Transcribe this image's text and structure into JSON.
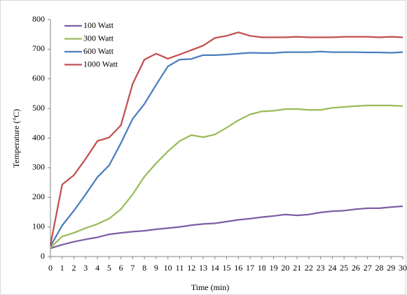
{
  "chart_data": {
    "type": "line",
    "x_label": "Time (min)",
    "y_label": "Temperature (°C)",
    "x": [
      0,
      1,
      2,
      3,
      4,
      5,
      6,
      7,
      8,
      9,
      10,
      11,
      12,
      13,
      14,
      15,
      16,
      17,
      18,
      19,
      20,
      21,
      22,
      23,
      24,
      25,
      26,
      27,
      28,
      29,
      30
    ],
    "xlim": [
      0,
      30
    ],
    "xticks": [
      0,
      1,
      2,
      3,
      4,
      5,
      6,
      7,
      8,
      9,
      10,
      11,
      12,
      13,
      14,
      15,
      16,
      17,
      18,
      19,
      20,
      21,
      22,
      23,
      24,
      25,
      26,
      27,
      28,
      29,
      30
    ],
    "ylim": [
      0,
      800
    ],
    "yticks": [
      0,
      100,
      200,
      300,
      400,
      500,
      600,
      700,
      800
    ],
    "grid": false,
    "legend": "top-left",
    "series": [
      {
        "name": "100 Watt",
        "color": "#7e5ea6",
        "values": [
          28,
          40,
          50,
          58,
          65,
          75,
          80,
          84,
          87,
          92,
          96,
          100,
          106,
          110,
          112,
          118,
          124,
          128,
          133,
          137,
          142,
          139,
          142,
          149,
          153,
          155,
          160,
          163,
          163,
          167,
          170
        ]
      },
      {
        "name": "300 Watt",
        "color": "#9bbb59",
        "values": [
          30,
          68,
          80,
          96,
          110,
          128,
          160,
          210,
          270,
          315,
          355,
          390,
          410,
          403,
          412,
          435,
          460,
          480,
          490,
          492,
          498,
          498,
          495,
          495,
          502,
          505,
          508,
          510,
          510,
          510,
          508
        ]
      },
      {
        "name": "600 Watt",
        "color": "#4a7ebb",
        "values": [
          35,
          105,
          155,
          210,
          268,
          308,
          383,
          465,
          515,
          580,
          642,
          665,
          667,
          680,
          680,
          682,
          685,
          688,
          687,
          687,
          690,
          690,
          690,
          692,
          690,
          690,
          690,
          689,
          689,
          688,
          690
        ]
      },
      {
        "name": "1000 Watt",
        "color": "#c0504d",
        "values": [
          40,
          243,
          275,
          330,
          390,
          402,
          443,
          583,
          665,
          685,
          668,
          682,
          697,
          712,
          738,
          745,
          757,
          745,
          740,
          740,
          740,
          742,
          740,
          740,
          740,
          742,
          742,
          742,
          740,
          742,
          740
        ]
      }
    ]
  }
}
